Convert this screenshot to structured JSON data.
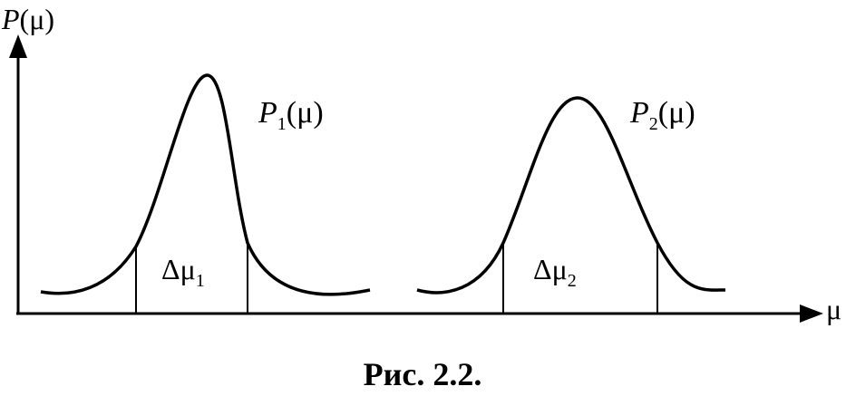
{
  "axes": {
    "y_label": {
      "symbol": "P",
      "argument": "(μ)"
    },
    "x_label": "μ"
  },
  "curves": [
    {
      "label": {
        "symbol": "P",
        "subscript": "1",
        "argument": "(μ)"
      },
      "width_label": {
        "symbol": "Δμ",
        "subscript": "1"
      }
    },
    {
      "label": {
        "symbol": "P",
        "subscript": "2",
        "argument": "(μ)"
      },
      "width_label": {
        "symbol": "Δμ",
        "subscript": "2"
      }
    }
  ],
  "caption": "Рис. 2.2."
}
